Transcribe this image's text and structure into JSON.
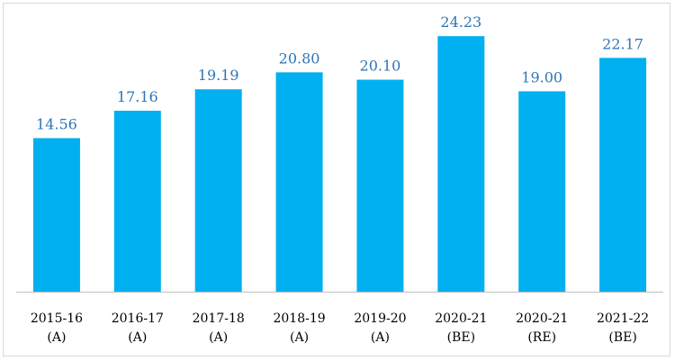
{
  "chart_data": {
    "type": "bar",
    "categories": [
      {
        "line1": "2015-16",
        "line2": "(A)"
      },
      {
        "line1": "2016-17",
        "line2": "(A)"
      },
      {
        "line1": "2017-18",
        "line2": "(A)"
      },
      {
        "line1": "2018-19",
        "line2": "(A)"
      },
      {
        "line1": "2019-20",
        "line2": "(A)"
      },
      {
        "line1": "2020-21",
        "line2": "(BE)"
      },
      {
        "line1": "2020-21",
        "line2": "(RE)"
      },
      {
        "line1": "2021-22",
        "line2": "(BE)"
      }
    ],
    "values": [
      14.56,
      17.16,
      19.19,
      20.8,
      20.1,
      24.23,
      19.0,
      22.17
    ],
    "value_labels": [
      "14.56",
      "17.16",
      "19.19",
      "20.80",
      "20.10",
      "24.23",
      "19.00",
      "22.17"
    ],
    "title": "",
    "xlabel": "",
    "ylabel": "",
    "ylim": [
      0,
      28
    ],
    "grid": false,
    "legend": "none",
    "colors": {
      "bar": "#00b0f0",
      "value_label": "#2e75b6",
      "tick_label": "#000000",
      "baseline": "#bfbfbf",
      "frame_border": "#d9d9d9"
    }
  }
}
